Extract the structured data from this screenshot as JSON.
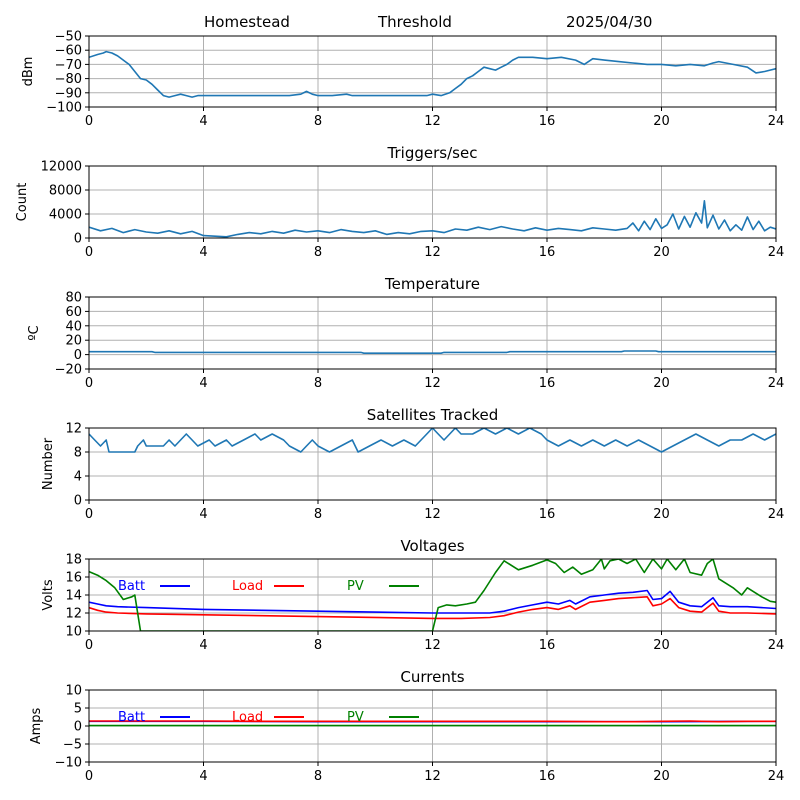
{
  "header": {
    "left": "Homestead",
    "center": "Threshold",
    "right": "2025/04/30"
  },
  "chart_data": [
    {
      "type": "line",
      "title": "",
      "ylabel": "dBm",
      "xlim": [
        0,
        24
      ],
      "ylim": [
        -100,
        -50
      ],
      "xticks": [
        0,
        4,
        8,
        12,
        16,
        20,
        24
      ],
      "yticks": [
        -100,
        -90,
        -80,
        -70,
        -60,
        -50
      ],
      "grid": true,
      "series": [
        {
          "name": "",
          "color": "#1f77b4",
          "x": [
            0,
            0.3,
            0.5,
            0.6,
            0.8,
            1.0,
            1.2,
            1.4,
            1.6,
            1.8,
            2.0,
            2.2,
            2.4,
            2.6,
            2.8,
            3.0,
            3.2,
            3.4,
            3.6,
            3.8,
            4.0,
            5.0,
            6.0,
            7.0,
            7.4,
            7.6,
            7.8,
            8.0,
            8.5,
            9.0,
            9.2,
            9.5,
            10.0,
            11.0,
            11.5,
            11.8,
            12.0,
            12.3,
            12.6,
            12.8,
            13.0,
            13.2,
            13.4,
            13.6,
            13.8,
            14.0,
            14.2,
            14.4,
            14.6,
            14.8,
            15.0,
            15.5,
            16.0,
            16.5,
            17.0,
            17.3,
            17.6,
            18.0,
            18.5,
            19.0,
            19.5,
            20.0,
            20.5,
            21.0,
            21.5,
            21.8,
            22.0,
            22.5,
            23.0,
            23.3,
            23.6,
            24.0
          ],
          "y": [
            -65,
            -63,
            -62,
            -61,
            -62,
            -64,
            -67,
            -70,
            -75,
            -80,
            -81,
            -84,
            -88,
            -92,
            -93,
            -92,
            -91,
            -92,
            -93,
            -92,
            -92,
            -92,
            -92,
            -92,
            -91,
            -89,
            -91,
            -92,
            -92,
            -91,
            -92,
            -92,
            -92,
            -92,
            -92,
            -92,
            -91,
            -92,
            -90,
            -87,
            -84,
            -80,
            -78,
            -75,
            -72,
            -73,
            -74,
            -72,
            -70,
            -67,
            -65,
            -65,
            -66,
            -65,
            -67,
            -70,
            -66,
            -67,
            -68,
            -69,
            -70,
            -70,
            -71,
            -70,
            -71,
            -69,
            -68,
            -70,
            -72,
            -76,
            -75,
            -73
          ]
        }
      ]
    },
    {
      "type": "line",
      "title": "Triggers/sec",
      "ylabel": "Count",
      "xlim": [
        0,
        24
      ],
      "ylim": [
        0,
        12000
      ],
      "xticks": [
        0,
        4,
        8,
        12,
        16,
        20,
        24
      ],
      "yticks": [
        0,
        4000,
        8000,
        12000
      ],
      "grid": true,
      "series": [
        {
          "name": "",
          "color": "#1f77b4",
          "x": [
            0,
            0.4,
            0.8,
            1.2,
            1.6,
            2.0,
            2.4,
            2.8,
            3.2,
            3.6,
            4.0,
            4.4,
            4.8,
            5.2,
            5.6,
            6.0,
            6.4,
            6.8,
            7.2,
            7.6,
            8.0,
            8.4,
            8.8,
            9.2,
            9.6,
            10.0,
            10.4,
            10.8,
            11.2,
            11.6,
            12.0,
            12.4,
            12.8,
            13.2,
            13.6,
            14.0,
            14.4,
            14.8,
            15.2,
            15.6,
            16.0,
            16.4,
            16.8,
            17.2,
            17.6,
            18.0,
            18.4,
            18.8,
            19.0,
            19.2,
            19.4,
            19.6,
            19.8,
            20.0,
            20.2,
            20.4,
            20.6,
            20.8,
            21.0,
            21.2,
            21.4,
            21.5,
            21.6,
            21.8,
            22.0,
            22.2,
            22.4,
            22.6,
            22.8,
            23.0,
            23.2,
            23.4,
            23.6,
            23.8,
            24.0
          ],
          "y": [
            1800,
            1200,
            1600,
            900,
            1400,
            1000,
            800,
            1200,
            700,
            1100,
            400,
            300,
            200,
            600,
            900,
            700,
            1100,
            800,
            1300,
            1000,
            1200,
            900,
            1400,
            1100,
            900,
            1200,
            600,
            900,
            700,
            1100,
            1200,
            900,
            1500,
            1300,
            1800,
            1400,
            1900,
            1500,
            1200,
            1700,
            1300,
            1600,
            1400,
            1200,
            1700,
            1500,
            1300,
            1600,
            2500,
            1200,
            2800,
            1400,
            3200,
            1600,
            2200,
            4000,
            1500,
            3600,
            1800,
            4200,
            2500,
            6200,
            1700,
            3800,
            1500,
            3000,
            1200,
            2200,
            1300,
            3500,
            1400,
            2800,
            1200,
            1800,
            1500
          ]
        }
      ]
    },
    {
      "type": "line",
      "title": "Temperature",
      "ylabel": "ºC",
      "xlim": [
        0,
        24
      ],
      "ylim": [
        -20,
        80
      ],
      "xticks": [
        0,
        4,
        8,
        12,
        16,
        20,
        24
      ],
      "yticks": [
        -20,
        0,
        20,
        40,
        60,
        80
      ],
      "grid": true,
      "series": [
        {
          "name": "",
          "color": "#1f77b4",
          "x": [
            0,
            2.2,
            2.3,
            5.0,
            9.5,
            9.6,
            12.3,
            12.4,
            14.6,
            14.7,
            18.6,
            18.7,
            19.8,
            19.9,
            24.0
          ],
          "y": [
            4,
            4,
            3,
            3,
            3,
            2,
            2,
            3,
            3,
            4,
            4,
            5,
            5,
            4,
            4
          ]
        }
      ]
    },
    {
      "type": "line",
      "title": "Satellites Tracked",
      "ylabel": "Number",
      "xlim": [
        0,
        24
      ],
      "ylim": [
        0,
        12
      ],
      "xticks": [
        0,
        4,
        8,
        12,
        16,
        20,
        24
      ],
      "yticks": [
        0,
        4,
        8,
        12
      ],
      "grid": true,
      "series": [
        {
          "name": "",
          "color": "#1f77b4",
          "x": [
            0,
            0.2,
            0.4,
            0.6,
            0.7,
            1.6,
            1.7,
            1.9,
            2.0,
            2.6,
            2.8,
            3.0,
            3.2,
            3.4,
            3.6,
            3.8,
            4.2,
            4.4,
            4.8,
            5.0,
            5.4,
            5.8,
            6.0,
            6.4,
            6.8,
            7.0,
            7.4,
            7.6,
            7.8,
            8.0,
            8.4,
            8.8,
            9.2,
            9.4,
            9.8,
            10.2,
            10.6,
            11.0,
            11.4,
            11.8,
            12.0,
            12.2,
            12.4,
            12.6,
            12.8,
            13.0,
            13.4,
            13.8,
            14.2,
            14.6,
            15.0,
            15.4,
            15.8,
            16.0,
            16.4,
            16.8,
            17.2,
            17.6,
            18.0,
            18.4,
            18.8,
            19.2,
            19.6,
            20.0,
            20.4,
            20.8,
            21.2,
            21.6,
            22.0,
            22.4,
            22.8,
            23.2,
            23.6,
            24.0
          ],
          "y": [
            11,
            10,
            9,
            10,
            8,
            8,
            9,
            10,
            9,
            9,
            10,
            9,
            10,
            11,
            10,
            9,
            10,
            9,
            10,
            9,
            10,
            11,
            10,
            11,
            10,
            9,
            8,
            9,
            10,
            9,
            8,
            9,
            10,
            8,
            9,
            10,
            9,
            10,
            9,
            11,
            12,
            11,
            10,
            11,
            12,
            11,
            11,
            12,
            11,
            12,
            11,
            12,
            11,
            10,
            9,
            10,
            9,
            10,
            9,
            10,
            9,
            10,
            9,
            8,
            9,
            10,
            11,
            10,
            9,
            10,
            10,
            11,
            10,
            11
          ]
        }
      ]
    },
    {
      "type": "line",
      "title": "Voltages",
      "ylabel": "Volts",
      "xlim": [
        0,
        24
      ],
      "ylim": [
        10,
        18
      ],
      "xticks": [
        0,
        4,
        8,
        12,
        16,
        20,
        24
      ],
      "yticks": [
        10,
        12,
        14,
        16,
        18
      ],
      "grid": true,
      "legend": [
        "Batt",
        "Load",
        "PV"
      ],
      "series": [
        {
          "name": "Batt",
          "color": "#0000ff",
          "x": [
            0,
            0.3,
            0.6,
            1.0,
            2.0,
            4.0,
            8.0,
            12.0,
            13.0,
            14.0,
            14.5,
            15.0,
            15.5,
            16.0,
            16.4,
            16.8,
            17.0,
            17.5,
            18.0,
            18.5,
            19.0,
            19.5,
            19.7,
            20.0,
            20.3,
            20.6,
            21.0,
            21.4,
            21.8,
            22.0,
            22.4,
            23.0,
            24.0
          ],
          "y": [
            13.2,
            13.0,
            12.8,
            12.7,
            12.6,
            12.4,
            12.2,
            12.0,
            12.0,
            12.0,
            12.2,
            12.6,
            12.9,
            13.2,
            13.0,
            13.4,
            13.0,
            13.8,
            14.0,
            14.2,
            14.3,
            14.5,
            13.5,
            13.6,
            14.4,
            13.2,
            12.8,
            12.7,
            13.7,
            12.8,
            12.7,
            12.7,
            12.5
          ]
        },
        {
          "name": "Load",
          "color": "#ff0000",
          "x": [
            0,
            0.3,
            0.6,
            1.0,
            2.0,
            4.0,
            8.0,
            12.0,
            13.0,
            14.0,
            14.5,
            15.0,
            15.5,
            16.0,
            16.4,
            16.8,
            17.0,
            17.5,
            18.0,
            18.5,
            19.0,
            19.5,
            19.7,
            20.0,
            20.3,
            20.6,
            21.0,
            21.4,
            21.8,
            22.0,
            22.4,
            23.0,
            24.0
          ],
          "y": [
            12.6,
            12.3,
            12.1,
            12.0,
            11.9,
            11.8,
            11.6,
            11.4,
            11.4,
            11.5,
            11.7,
            12.1,
            12.4,
            12.6,
            12.4,
            12.8,
            12.4,
            13.2,
            13.4,
            13.6,
            13.7,
            13.8,
            12.8,
            13.0,
            13.6,
            12.6,
            12.2,
            12.1,
            13.1,
            12.2,
            12.0,
            12.0,
            11.9
          ]
        },
        {
          "name": "PV",
          "color": "#008000",
          "x": [
            0,
            0.3,
            0.6,
            0.9,
            1.2,
            1.5,
            1.6,
            1.8,
            12.0,
            12.2,
            12.5,
            12.8,
            13.2,
            13.5,
            13.8,
            14.2,
            14.5,
            15.0,
            15.5,
            16.0,
            16.3,
            16.6,
            16.9,
            17.2,
            17.6,
            17.9,
            18.0,
            18.2,
            18.5,
            18.8,
            19.1,
            19.4,
            19.7,
            20.0,
            20.2,
            20.5,
            20.8,
            21.0,
            21.4,
            21.6,
            21.8,
            22.0,
            22.5,
            22.8,
            23.0,
            23.5,
            23.8,
            24.0
          ],
          "y": [
            16.6,
            16.2,
            15.6,
            14.8,
            13.5,
            13.8,
            14.0,
            10.0,
            10.0,
            12.6,
            12.9,
            12.8,
            13.0,
            13.2,
            14.5,
            16.5,
            17.8,
            16.8,
            17.3,
            17.9,
            17.5,
            16.5,
            17.1,
            16.3,
            16.8,
            18.0,
            16.9,
            17.8,
            18.0,
            17.5,
            18.0,
            16.5,
            18.0,
            16.9,
            18.0,
            16.8,
            18.0,
            16.5,
            16.2,
            17.5,
            18.0,
            15.8,
            14.8,
            14.0,
            14.8,
            13.8,
            13.3,
            13.2
          ]
        }
      ]
    },
    {
      "type": "line",
      "title": "Currents",
      "ylabel": "Amps",
      "xlim": [
        0,
        24
      ],
      "ylim": [
        -10,
        10
      ],
      "xticks": [
        0,
        4,
        8,
        12,
        16,
        20,
        24
      ],
      "yticks": [
        -10,
        -5,
        0,
        5,
        10
      ],
      "grid": true,
      "legend": [
        "Batt",
        "Load",
        "PV"
      ],
      "series": [
        {
          "name": "Batt",
          "color": "#0000ff",
          "x": [
            0,
            4,
            8,
            12,
            16,
            20,
            24
          ],
          "y": [
            1.3,
            1.3,
            1.2,
            1.2,
            1.2,
            1.2,
            1.3
          ]
        },
        {
          "name": "Load",
          "color": "#ff0000",
          "x": [
            0,
            2,
            4,
            6,
            8,
            10,
            12,
            14,
            16,
            18,
            19,
            20,
            21,
            22,
            23,
            24
          ],
          "y": [
            1.4,
            1.4,
            1.4,
            1.3,
            1.3,
            1.3,
            1.3,
            1.3,
            1.3,
            1.2,
            1.2,
            1.3,
            1.4,
            1.2,
            1.3,
            1.3
          ]
        },
        {
          "name": "PV",
          "color": "#008000",
          "x": [
            0,
            4,
            8,
            12,
            16,
            20,
            24
          ],
          "y": [
            0.1,
            0.1,
            0.1,
            0.1,
            0.1,
            0.1,
            0.1
          ]
        }
      ]
    }
  ]
}
